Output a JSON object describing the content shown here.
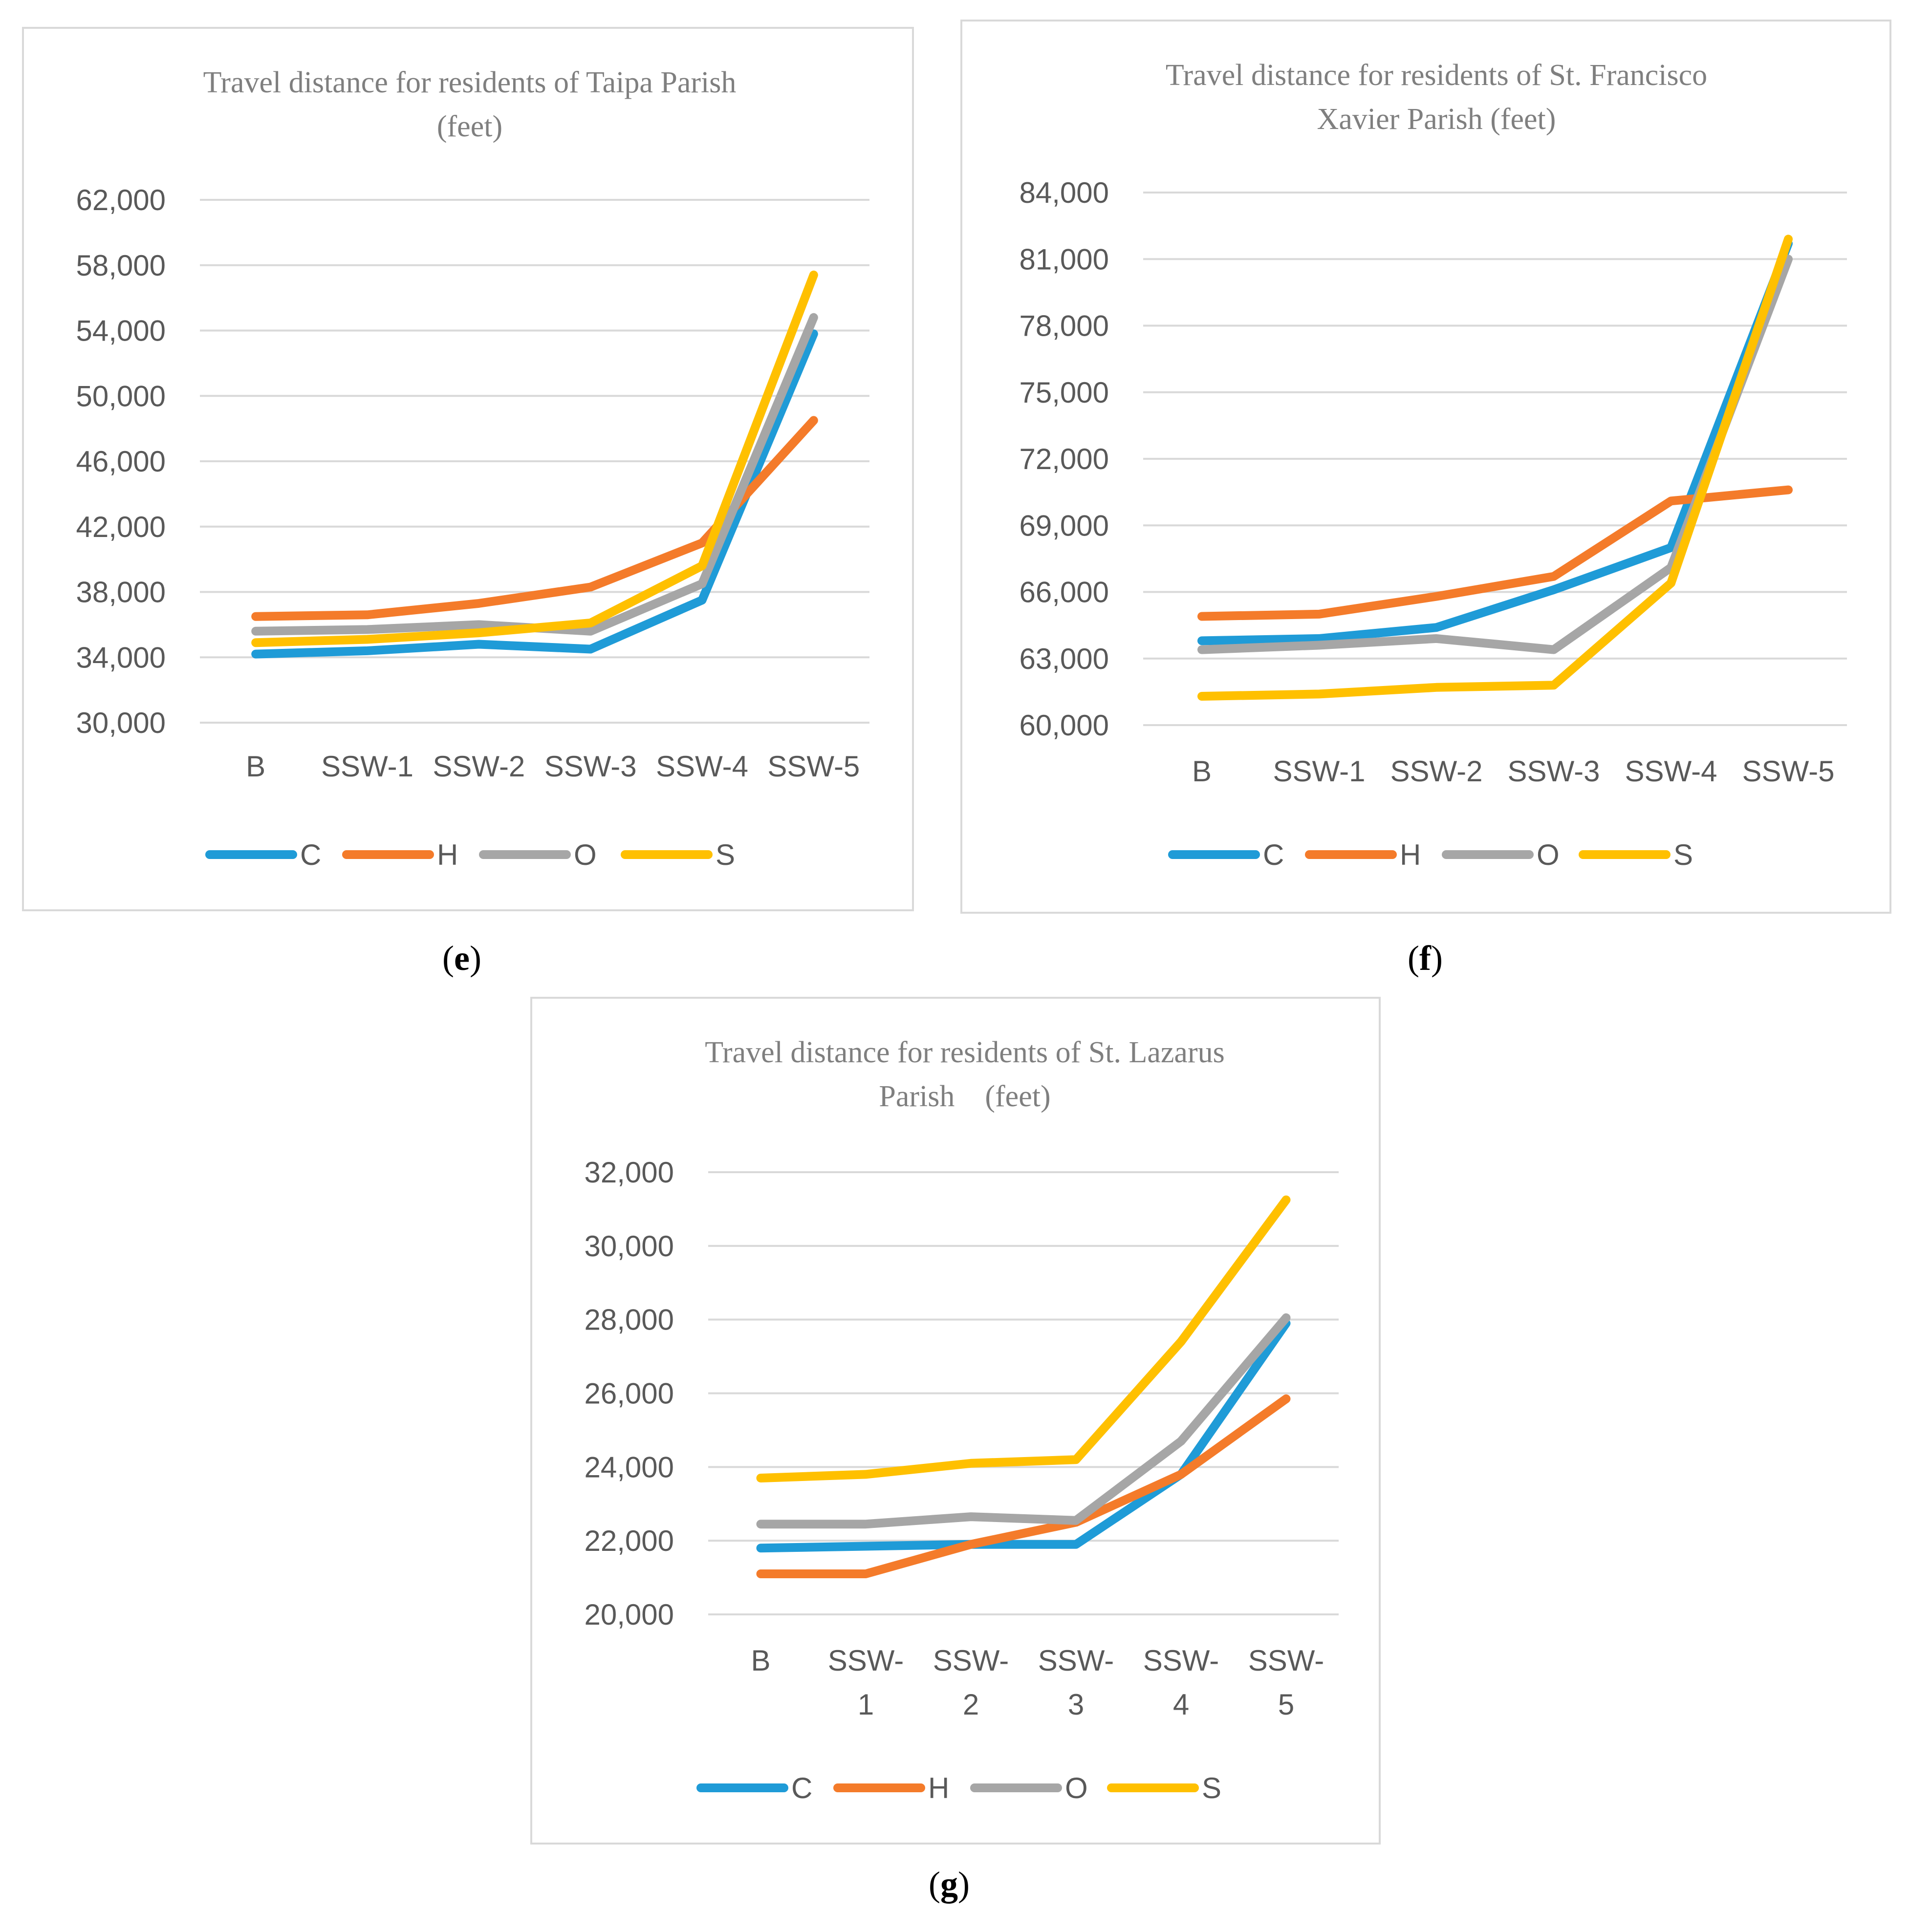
{
  "chart_data": [
    {
      "type": "line",
      "panel": "e",
      "caption_letter": "e",
      "title_lines": [
        "Travel distance for residents of Taipa Parish",
        "(feet)"
      ],
      "categories": [
        "B",
        "SSW-1",
        "SSW-2",
        "SSW-3",
        "SSW-4",
        "SSW-5"
      ],
      "category_lines": [
        [
          "B"
        ],
        [
          "SSW-1"
        ],
        [
          "SSW-2"
        ],
        [
          "SSW-3"
        ],
        [
          "SSW-4"
        ],
        [
          "SSW-5"
        ]
      ],
      "ylim": [
        30000,
        62000
      ],
      "yticks": [
        30000,
        34000,
        38000,
        42000,
        46000,
        50000,
        54000,
        58000,
        62000
      ],
      "ytick_labels": [
        "30,000",
        "34,000",
        "38,000",
        "42,000",
        "46,000",
        "50,000",
        "54,000",
        "58,000",
        "62,000"
      ],
      "grid": true,
      "legend_position": "bottom",
      "series": [
        {
          "name": "C",
          "color": "#1f9bd7",
          "values": [
            34200,
            34400,
            34800,
            34500,
            37500,
            53800
          ]
        },
        {
          "name": "H",
          "color": "#f47b2a",
          "values": [
            36500,
            36600,
            37300,
            38300,
            41000,
            48500
          ]
        },
        {
          "name": "O",
          "color": "#a6a6a6",
          "values": [
            35600,
            35700,
            36000,
            35600,
            38500,
            54800
          ]
        },
        {
          "name": "S",
          "color": "#ffc000",
          "values": [
            34900,
            35100,
            35500,
            36100,
            39600,
            57400
          ]
        }
      ]
    },
    {
      "type": "line",
      "panel": "f",
      "caption_letter": "f",
      "title_lines": [
        "Travel distance for residents of St. Francisco",
        "Xavier Parish (feet)"
      ],
      "categories": [
        "B",
        "SSW-1",
        "SSW-2",
        "SSW-3",
        "SSW-4",
        "SSW-5"
      ],
      "category_lines": [
        [
          "B"
        ],
        [
          "SSW-1"
        ],
        [
          "SSW-2"
        ],
        [
          "SSW-3"
        ],
        [
          "SSW-4"
        ],
        [
          "SSW-5"
        ]
      ],
      "ylim": [
        60000,
        84000
      ],
      "yticks": [
        60000,
        63000,
        66000,
        69000,
        72000,
        75000,
        78000,
        81000,
        84000
      ],
      "ytick_labels": [
        "60,000",
        "63,000",
        "66,000",
        "69,000",
        "72,000",
        "75,000",
        "78,000",
        "81,000",
        "84,000"
      ],
      "grid": true,
      "legend_position": "bottom",
      "series": [
        {
          "name": "C",
          "color": "#1f9bd7",
          "values": [
            63800,
            63900,
            64400,
            66100,
            68000,
            81700
          ]
        },
        {
          "name": "H",
          "color": "#f47b2a",
          "values": [
            64900,
            65000,
            65800,
            66700,
            70100,
            70600
          ]
        },
        {
          "name": "O",
          "color": "#a6a6a6",
          "values": [
            63400,
            63600,
            63900,
            63400,
            67100,
            81000
          ]
        },
        {
          "name": "S",
          "color": "#ffc000",
          "values": [
            61300,
            61400,
            61700,
            61800,
            66400,
            81900
          ]
        }
      ]
    },
    {
      "type": "line",
      "panel": "g",
      "caption_letter": "g",
      "title_lines": [
        "Travel distance for residents of  St. Lazarus",
        "Parish　(feet)"
      ],
      "categories": [
        "B",
        "SSW-1",
        "SSW-2",
        "SSW-3",
        "SSW-4",
        "SSW-5"
      ],
      "category_lines": [
        [
          "B"
        ],
        [
          "SSW-",
          "1"
        ],
        [
          "SSW-",
          "2"
        ],
        [
          "SSW-",
          "3"
        ],
        [
          "SSW-",
          "4"
        ],
        [
          "SSW-",
          "5"
        ]
      ],
      "ylim": [
        20000,
        32000
      ],
      "yticks": [
        20000,
        22000,
        24000,
        26000,
        28000,
        30000,
        32000
      ],
      "ytick_labels": [
        "20,000",
        "22,000",
        "24,000",
        "26,000",
        "28,000",
        "30,000",
        "32,000"
      ],
      "grid": true,
      "legend_position": "bottom",
      "series": [
        {
          "name": "C",
          "color": "#1f9bd7",
          "values": [
            21800,
            21850,
            21900,
            21900,
            23800,
            27900
          ]
        },
        {
          "name": "H",
          "color": "#f47b2a",
          "values": [
            21100,
            21100,
            21900,
            22500,
            23800,
            25850
          ]
        },
        {
          "name": "O",
          "color": "#a6a6a6",
          "values": [
            22450,
            22450,
            22650,
            22550,
            24700,
            28050
          ]
        },
        {
          "name": "S",
          "color": "#ffc000",
          "values": [
            23700,
            23800,
            24100,
            24200,
            27400,
            31250
          ]
        }
      ]
    }
  ]
}
